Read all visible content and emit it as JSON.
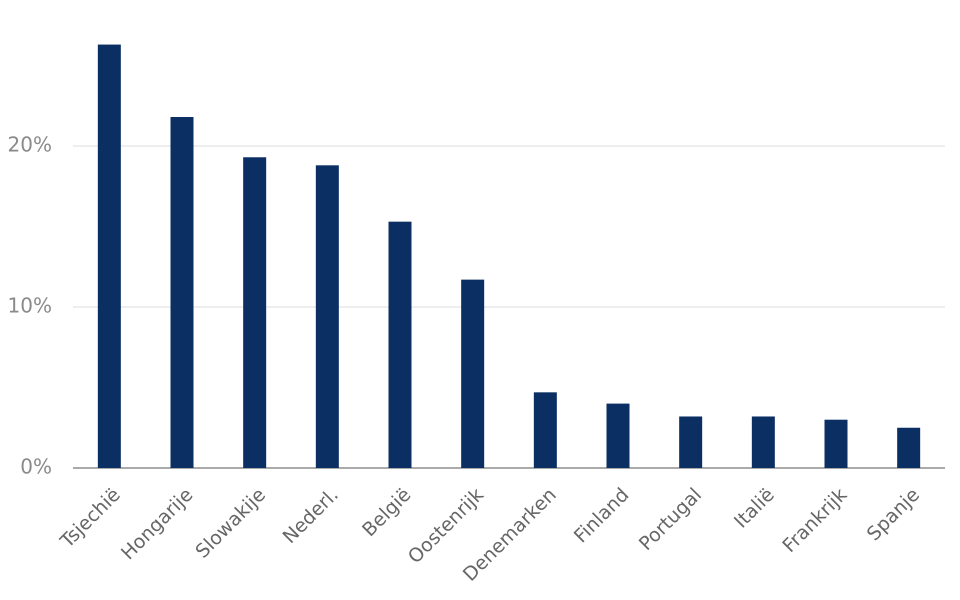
{
  "chart_data": {
    "type": "bar",
    "categories": [
      "Tsjechië",
      "Hongarije",
      "Slowakije",
      "Nederl.",
      "België",
      "Oostenrijk",
      "Denemarken",
      "Finland",
      "Portugal",
      "Italië",
      "Frankrijk",
      "Spanje"
    ],
    "values": [
      26.3,
      21.8,
      19.3,
      18.8,
      15.3,
      11.7,
      4.7,
      4.0,
      3.2,
      3.2,
      3.0,
      2.5
    ],
    "color": "#0b2f63",
    "ylim": [
      0,
      27
    ],
    "yticks": [
      {
        "value": 0,
        "label": "0%"
      },
      {
        "value": 10,
        "label": "10%"
      },
      {
        "value": 20,
        "label": "20%"
      }
    ],
    "grid": true
  }
}
